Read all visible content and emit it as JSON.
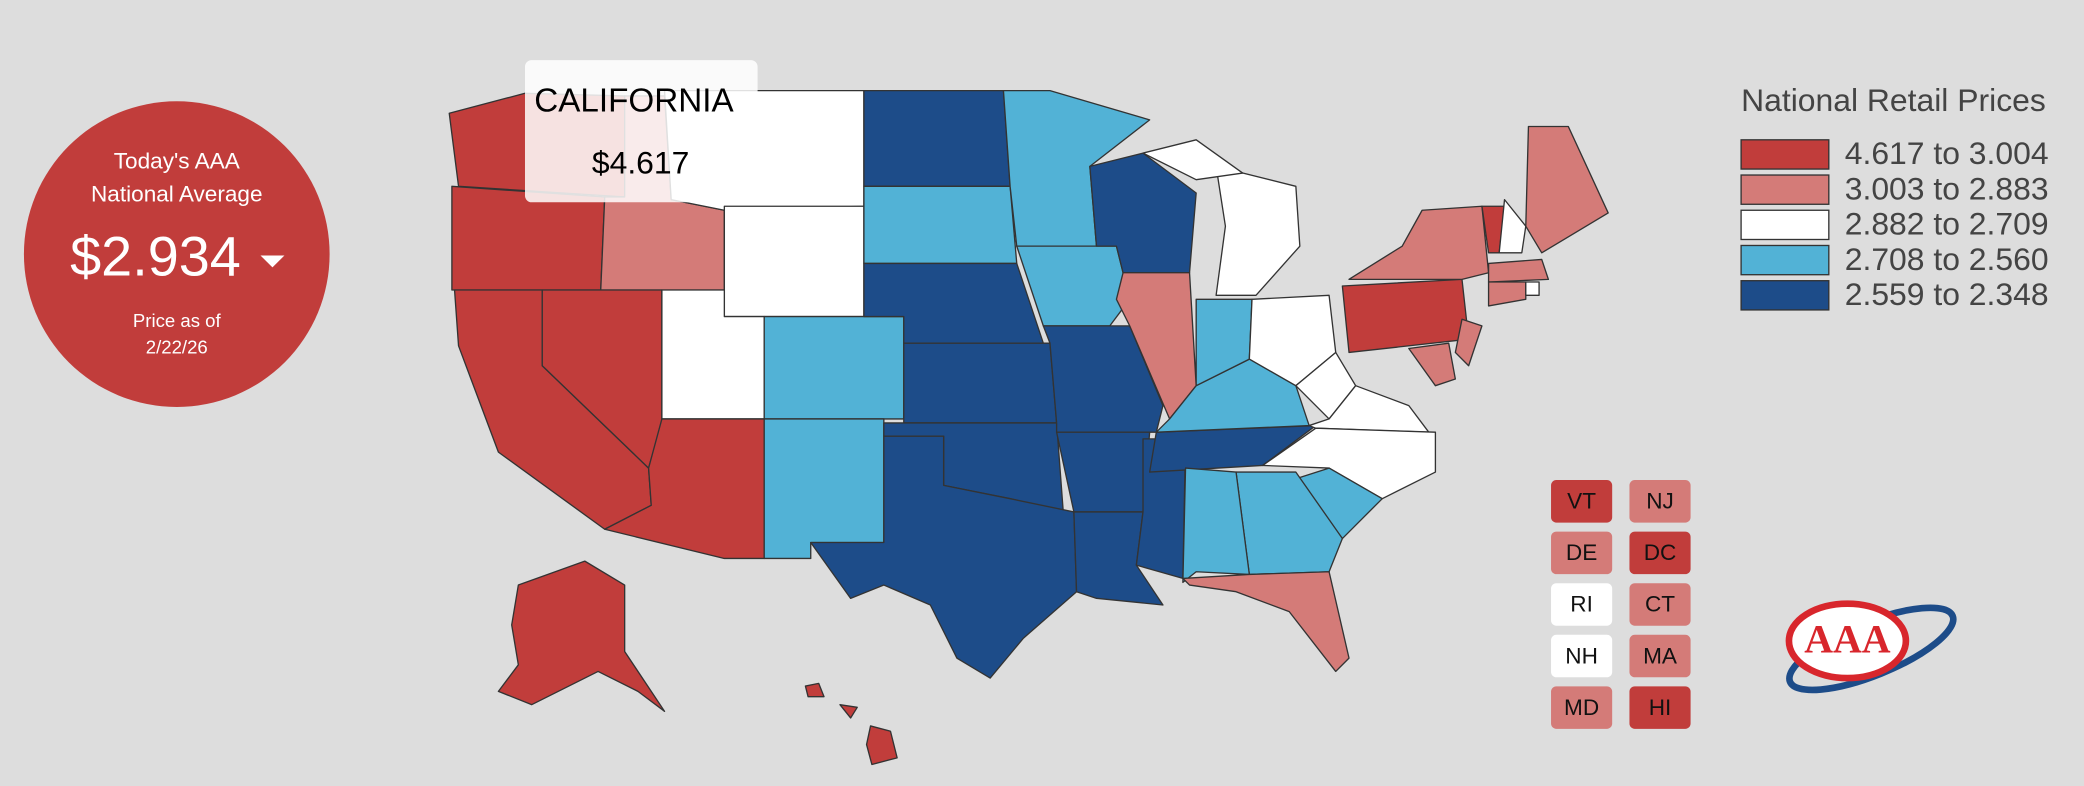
{
  "national_average": {
    "line1": "Today's AAA",
    "line2": "National Average",
    "price": "$2.934",
    "date_label": "Price as of",
    "date": "2/22/26",
    "color": "#c13d3b"
  },
  "tooltip": {
    "state": "CALIFORNIA",
    "price": "$4.617"
  },
  "legend": {
    "title": "National Retail Prices",
    "items": [
      {
        "label": "4.617 to 3.004",
        "color": "#c13d3b"
      },
      {
        "label": "3.003 to 2.883",
        "color": "#d47b78"
      },
      {
        "label": "2.882 to 2.709",
        "color": "#ffffff"
      },
      {
        "label": "2.708 to 2.560",
        "color": "#52b2d6"
      },
      {
        "label": "2.559 to 2.348",
        "color": "#1d4c89"
      }
    ]
  },
  "small_states": [
    {
      "label": "VT",
      "color": "#c13d3b"
    },
    {
      "label": "NJ",
      "color": "#d47b78"
    },
    {
      "label": "DE",
      "color": "#d47b78"
    },
    {
      "label": "DC",
      "color": "#c13d3b"
    },
    {
      "label": "RI",
      "color": "#ffffff"
    },
    {
      "label": "CT",
      "color": "#d47b78"
    },
    {
      "label": "NH",
      "color": "#ffffff"
    },
    {
      "label": "MA",
      "color": "#d47b78"
    },
    {
      "label": "MD",
      "color": "#d47b78"
    },
    {
      "label": "HI",
      "color": "#c13d3b"
    }
  ],
  "logo": {
    "text": "AAA"
  }
}
